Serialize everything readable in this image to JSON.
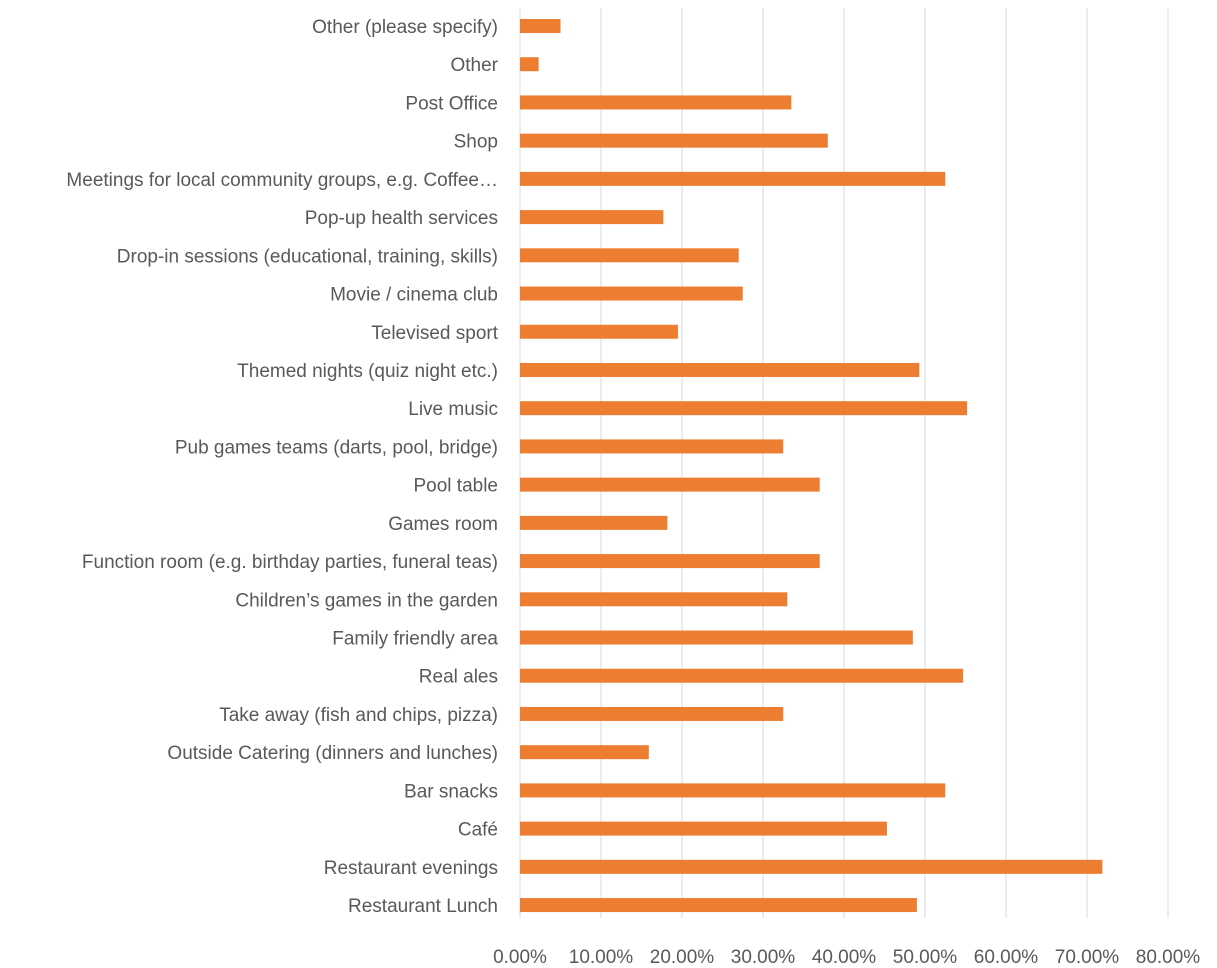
{
  "chart_data": {
    "type": "bar",
    "orientation": "horizontal",
    "categories": [
      "Other (please specify)",
      "Other",
      "Post Office",
      "Shop",
      "Meetings for local community groups, e.g. Coffee…",
      "Pop-up health services",
      "Drop-in sessions (educational, training, skills)",
      "Movie / cinema club",
      "Televised sport",
      "Themed nights (quiz night etc.)",
      "Live music",
      "Pub games teams (darts, pool, bridge)",
      "Pool table",
      "Games room",
      "Function room (e.g. birthday parties, funeral teas)",
      "Children’s games in the garden",
      "Family friendly area",
      "Real ales",
      "Take away (fish and chips, pizza)",
      "Outside Catering (dinners and lunches)",
      "Bar snacks",
      "Café",
      "Restaurant evenings",
      "Restaurant Lunch"
    ],
    "values": [
      5.0,
      2.3,
      33.5,
      38.0,
      52.5,
      17.7,
      27.0,
      27.5,
      19.5,
      49.3,
      55.2,
      32.5,
      37.0,
      18.2,
      37.0,
      33.0,
      48.5,
      54.7,
      32.5,
      15.9,
      52.5,
      45.3,
      71.9,
      49.0
    ],
    "xlim": [
      0,
      80
    ],
    "xticks": [
      "0.00%",
      "10.00%",
      "20.00%",
      "30.00%",
      "40.00%",
      "50.00%",
      "60.00%",
      "70.00%",
      "80.00%"
    ],
    "grid": true,
    "bar_color": "#ED7D31",
    "grid_color": "#D9D9D9",
    "text_color": "#595959"
  }
}
